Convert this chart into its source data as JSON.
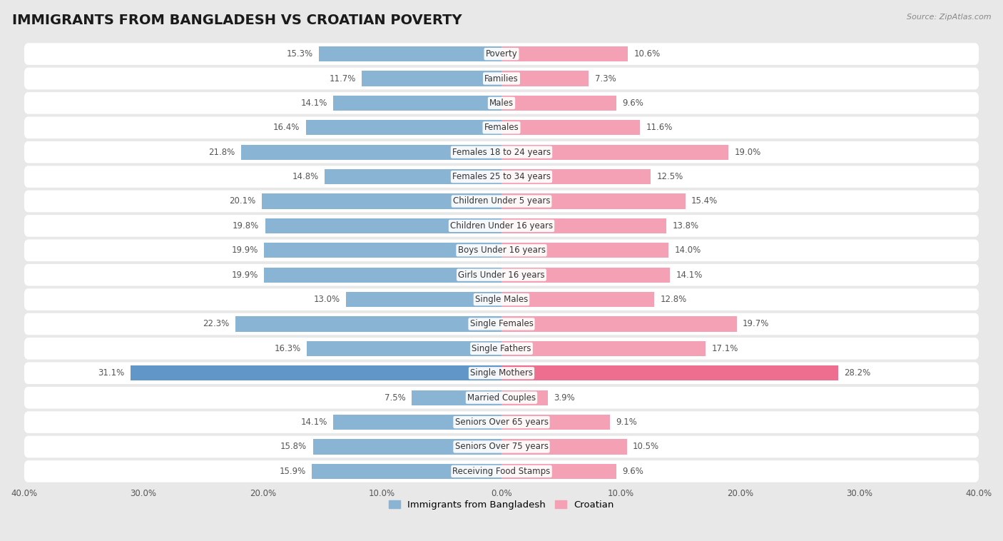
{
  "title": "IMMIGRANTS FROM BANGLADESH VS CROATIAN POVERTY",
  "source": "Source: ZipAtlas.com",
  "categories": [
    "Poverty",
    "Families",
    "Males",
    "Females",
    "Females 18 to 24 years",
    "Females 25 to 34 years",
    "Children Under 5 years",
    "Children Under 16 years",
    "Boys Under 16 years",
    "Girls Under 16 years",
    "Single Males",
    "Single Females",
    "Single Fathers",
    "Single Mothers",
    "Married Couples",
    "Seniors Over 65 years",
    "Seniors Over 75 years",
    "Receiving Food Stamps"
  ],
  "bangladesh_values": [
    15.3,
    11.7,
    14.1,
    16.4,
    21.8,
    14.8,
    20.1,
    19.8,
    19.9,
    19.9,
    13.0,
    22.3,
    16.3,
    31.1,
    7.5,
    14.1,
    15.8,
    15.9
  ],
  "croatian_values": [
    10.6,
    7.3,
    9.6,
    11.6,
    19.0,
    12.5,
    15.4,
    13.8,
    14.0,
    14.1,
    12.8,
    19.7,
    17.1,
    28.2,
    3.9,
    9.1,
    10.5,
    9.6
  ],
  "bangladesh_color": "#8ab4d4",
  "croatian_color": "#f4a0b5",
  "highlight_bangladesh_color": "#6096c8",
  "highlight_croatian_color": "#ee6e90",
  "outer_bg": "#e8e8e8",
  "row_bg": "#ffffff",
  "xlim": 40.0,
  "bar_height": 0.62,
  "legend_bangladesh": "Immigrants from Bangladesh",
  "legend_croatian": "Croatian",
  "title_fontsize": 14,
  "label_fontsize": 8.5,
  "value_fontsize": 8.5
}
